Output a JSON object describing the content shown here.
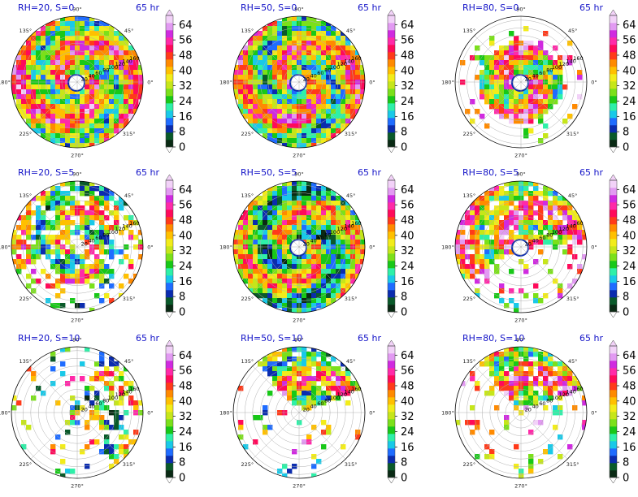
{
  "chart_data": {
    "type": "polar-contourf-grid",
    "time_label": "65 hr",
    "angular_ticks": [
      "0°",
      "45°",
      "90°",
      "135°",
      "180°",
      "225°",
      "270°",
      "315°"
    ],
    "radial_ticks": [
      "20",
      "40",
      "60",
      "80",
      "100",
      "120",
      "140",
      "160"
    ],
    "colorbar": {
      "ticks": [
        "0",
        "8",
        "16",
        "24",
        "32",
        "40",
        "48",
        "56",
        "64"
      ],
      "colors": [
        "#0a2a14",
        "#0a5a2a",
        "#0b2cae",
        "#1f6cff",
        "#19c9e8",
        "#2ef0a8",
        "#18c818",
        "#7be01a",
        "#c6e61a",
        "#f2ec1a",
        "#ffc000",
        "#ff8a00",
        "#ff3a1a",
        "#ff0a5a",
        "#ff2aa8",
        "#d02ae0",
        "#e29af2",
        "#f2d2f8"
      ]
    },
    "panels": [
      {
        "title": "RH=20, S=0",
        "coverage": "full",
        "rain_level": 0.55
      },
      {
        "title": "RH=50, S=0",
        "coverage": "full",
        "rain_level": 0.5
      },
      {
        "title": "RH=80, S=0",
        "coverage": "compact",
        "rain_level": 0.6
      },
      {
        "title": "RH=20, S=5",
        "coverage": "patchy",
        "rain_level": 0.45
      },
      {
        "title": "RH=50, S=5",
        "coverage": "full",
        "rain_level": 0.4
      },
      {
        "title": "RH=80, S=5",
        "coverage": "north",
        "rain_level": 0.6
      },
      {
        "title": "RH=20, S=10",
        "coverage": "sparse",
        "rain_level": 0.4
      },
      {
        "title": "RH=50, S=10",
        "coverage": "sector",
        "rain_level": 0.5
      },
      {
        "title": "RH=80, S=10",
        "coverage": "sector",
        "rain_level": 0.6
      }
    ]
  }
}
